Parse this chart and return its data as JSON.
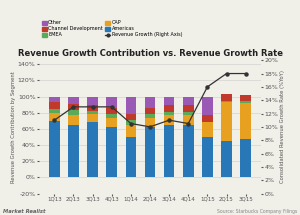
{
  "title": "Revenue Growth Contribution vs. Revenue Growth Rate",
  "categories": [
    "1Q13",
    "2Q13",
    "3Q13",
    "4Q13",
    "1Q14",
    "2Q14",
    "3Q14",
    "4Q14",
    "1Q15",
    "2Q15",
    "3Q15"
  ],
  "americas": [
    70,
    65,
    68,
    62,
    50,
    62,
    65,
    65,
    50,
    45,
    48
  ],
  "cap": [
    10,
    12,
    10,
    12,
    15,
    12,
    12,
    12,
    22,
    48,
    44
  ],
  "emea": [
    5,
    6,
    4,
    4,
    6,
    4,
    4,
    4,
    -3,
    2,
    2
  ],
  "channel_dev": [
    8,
    8,
    8,
    8,
    8,
    8,
    8,
    8,
    8,
    8,
    8
  ],
  "other": [
    7,
    9,
    10,
    14,
    21,
    14,
    11,
    11,
    23,
    0,
    0
  ],
  "revenue_growth": [
    11.0,
    13.0,
    13.0,
    13.0,
    10.5,
    10.0,
    11.0,
    10.5,
    16.0,
    18.0,
    18.0
  ],
  "colors": {
    "americas": "#2878b8",
    "cap": "#e8a020",
    "emea": "#5aaa5a",
    "channel_dev": "#c0392b",
    "other": "#9b59b6"
  },
  "ylabel_left": "Revenue Growth Contribution by Segment",
  "ylabel_right": "Consolidated Revenue Growth Rate (%YoY)",
  "ylim_left": [
    -20,
    145
  ],
  "ylim_right": [
    0,
    20
  ],
  "yticks_left": [
    -20,
    0,
    20,
    40,
    60,
    80,
    100,
    120,
    140
  ],
  "yticks_right": [
    0,
    2,
    4,
    6,
    8,
    10,
    12,
    14,
    16,
    18,
    20
  ],
  "source_text": "Source: Starbucks Company Filings",
  "watermark": "Market Realist",
  "bg_color": "#f0efe8",
  "grid_color": "#cccccc"
}
